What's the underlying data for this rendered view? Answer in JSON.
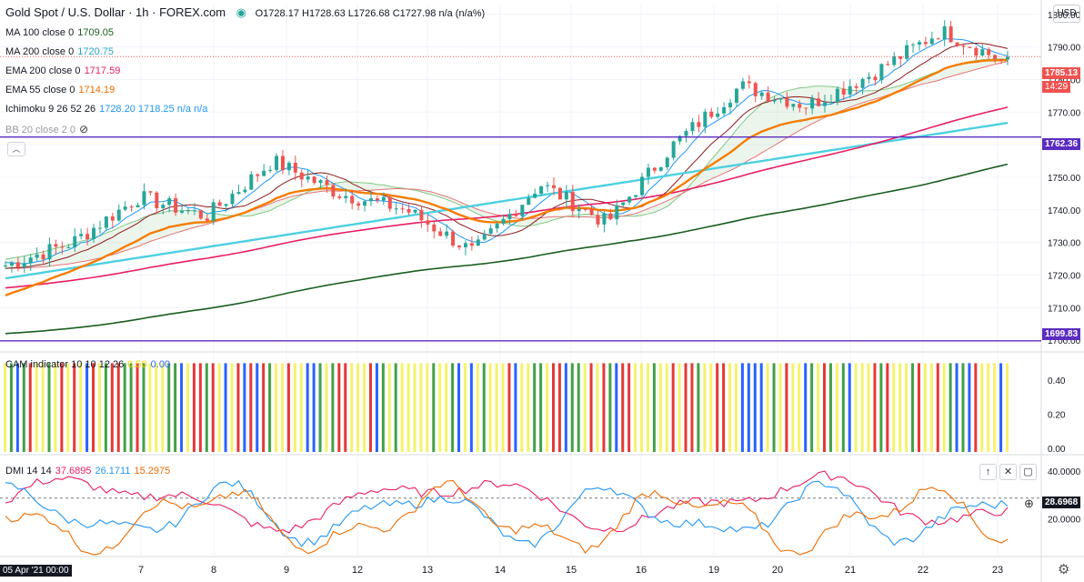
{
  "header": {
    "symbol": "Gold Spot / U.S. Dollar · 1h · FOREX.com",
    "ohlc": "O1728.17 H1728.63 L1726.68 C1727.98 n/a (n/a%)",
    "currency": "USD"
  },
  "legend": [
    {
      "label": "MA 100 close 0",
      "value": "1709.05",
      "color": "#1b5e20"
    },
    {
      "label": "MA 200 close 0",
      "value": "1720.75",
      "color": "#26a6c9"
    },
    {
      "label": "EMA 200 close 0",
      "value": "1717.59",
      "color": "#e91e63"
    },
    {
      "label": "EMA 55 close 0",
      "value": "1714.19",
      "color": "#ef6c00"
    },
    {
      "label": "Ichimoku 9 26 52 26",
      "value": "1728.20 1718.25 n/a n/a",
      "color": "#2196f3"
    },
    {
      "label": "BB 20 close 2 0",
      "value": "",
      "color": "#9598a1"
    }
  ],
  "cam_legend": {
    "label": "CAM indicator 10 10 12 26",
    "v1": "0.50",
    "v2": "0.00"
  },
  "dmi_legend": {
    "label": "DMI 14 14",
    "v1": "37.6895",
    "v2": "26.1711",
    "v3": "15.2975"
  },
  "badges": {
    "price": "1785.13",
    "countdown": "14:29",
    "line_upper": "1762.36",
    "line_lower": "1699.83",
    "dmi": "28.6968",
    "date": "05 Apr '21   00:00"
  },
  "icons": {
    "eye": "eye-crossed-icon",
    "collapse": "chevron-up-icon",
    "up": "arrow-up-icon",
    "close": "close-icon",
    "maximize": "maximize-icon",
    "settings": "gear-icon",
    "add": "plus-circle-icon"
  },
  "colors": {
    "up": "#26a69a",
    "down": "#ef5350",
    "yellow": "#f5f26a",
    "red": "#e53935",
    "green": "#43a047",
    "blue": "#2962ff",
    "purple": "#5b2cc0"
  },
  "chart_data": {
    "type": "candlestick",
    "price_axis": {
      "ticks": [
        1700,
        1710,
        1720,
        1730,
        1740,
        1750,
        1760,
        1770,
        1780,
        1790,
        1800
      ],
      "ylim": [
        1697,
        1803
      ]
    },
    "x_ticks": [
      "7",
      "8",
      "9",
      "12",
      "13",
      "14",
      "15",
      "16",
      "19",
      "20",
      "21",
      "22",
      "23"
    ],
    "horizontal_lines": [
      1762.36,
      1699.83
    ],
    "key_closes": [
      1723,
      1730,
      1744,
      1738,
      1755,
      1745,
      1740,
      1727,
      1748,
      1736,
      1760,
      1778,
      1772,
      1782,
      1795,
      1785
    ],
    "cam_panel": {
      "ylim": [
        -0.02,
        0.55
      ],
      "ticks": [
        "0.00",
        "0.20",
        "0.40"
      ]
    },
    "dmi_panel": {
      "ylim": [
        5,
        45
      ],
      "ticks": [
        "20.0000",
        "40.0000"
      ],
      "threshold": 28.6968
    }
  }
}
